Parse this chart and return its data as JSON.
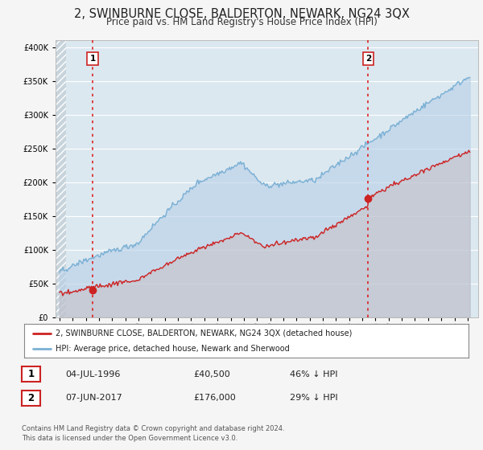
{
  "title": "2, SWINBURNE CLOSE, BALDERTON, NEWARK, NG24 3QX",
  "subtitle": "Price paid vs. HM Land Registry's House Price Index (HPI)",
  "title_fontsize": 10.5,
  "subtitle_fontsize": 8.5,
  "bg_color": "#f5f5f5",
  "plot_bg_color": "#dce8f0",
  "grid_color": "#ffffff",
  "hpi_color": "#7ab0d4",
  "price_color": "#cc2222",
  "marker_color": "#cc2222",
  "sale1_year": 1996.51,
  "sale1_price": 40500,
  "sale2_year": 2017.44,
  "sale2_price": 176000,
  "ylim_max": 410000,
  "xmin": 1993.7,
  "xmax": 2025.8,
  "legend_label1": "2, SWINBURNE CLOSE, BALDERTON, NEWARK, NG24 3QX (detached house)",
  "legend_label2": "HPI: Average price, detached house, Newark and Sherwood",
  "table_row1": [
    "1",
    "04-JUL-1996",
    "£40,500",
    "46% ↓ HPI"
  ],
  "table_row2": [
    "2",
    "07-JUN-2017",
    "£176,000",
    "29% ↓ HPI"
  ],
  "footnote": "Contains HM Land Registry data © Crown copyright and database right 2024.\nThis data is licensed under the Open Government Licence v3.0.",
  "vline_color": "#dd2222",
  "hatch_color": "#c8d4dc"
}
